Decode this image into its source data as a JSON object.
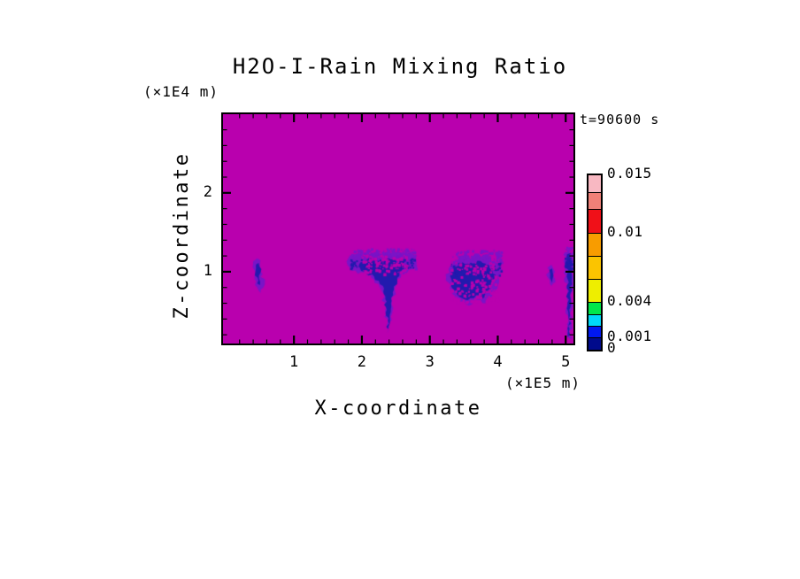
{
  "page": {
    "background_color": "#ffffff",
    "text_color": "#000000"
  },
  "chart_data": {
    "type": "heatmap",
    "title": "H2O-I-Rain Mixing Ratio",
    "xlabel": "X-coordinate",
    "ylabel": "Z-coordinate",
    "x_axis_unit": "(×1E5 m)",
    "y_axis_unit": "(×1E4 m)",
    "time_label": "t=90600 s",
    "x_range": [
      -0.07,
      5.14
    ],
    "z_range": [
      0.067,
      3.02
    ],
    "x_major_ticks": [
      1,
      2,
      3,
      4,
      5
    ],
    "x_tick_labels": [
      "1",
      "2",
      "3",
      "4",
      "5"
    ],
    "z_major_ticks": [
      1,
      2
    ],
    "z_tick_labels": [
      "1",
      "2"
    ],
    "minor_tick_step": 0.2,
    "grid": false,
    "field_background_color": "#B900AE",
    "fringe_color": "#7A14C6",
    "core_color": "#221AAE",
    "colorbar": {
      "orientation": "vertical",
      "value_min": 0,
      "value_max": 0.015,
      "levels": [
        0,
        0.001,
        0.002,
        0.003,
        0.004,
        0.006,
        0.008,
        0.01,
        0.012,
        0.0135,
        0.015
      ],
      "colors_bottom_to_top": [
        "#000A8C",
        "#0018F0",
        "#00D8F8",
        "#00E64A",
        "#EEEE00",
        "#FBC400",
        "#F89C00",
        "#F01018",
        "#F08078",
        "#F8B8C2"
      ],
      "labels": [
        {
          "text": "0.015",
          "value": 0.015
        },
        {
          "text": "0.01",
          "value": 0.01
        },
        {
          "text": "0.004",
          "value": 0.004
        },
        {
          "text": "0.001",
          "value": 0.001
        },
        {
          "text": "0",
          "value": 0
        }
      ]
    },
    "features": [
      {
        "name": "rain-cell-1",
        "value_range": "0 to ~0.002",
        "fringe": [
          [
            0.4,
            1.13
          ],
          [
            0.46,
            1.17
          ],
          [
            0.5,
            1.1
          ],
          [
            0.54,
            0.97
          ],
          [
            0.55,
            0.8
          ],
          [
            0.51,
            0.73
          ],
          [
            0.46,
            0.8
          ],
          [
            0.42,
            0.95
          ]
        ],
        "core": [
          [
            0.44,
            1.09
          ],
          [
            0.48,
            1.11
          ],
          [
            0.51,
            0.99
          ],
          [
            0.5,
            0.83
          ],
          [
            0.46,
            0.85
          ],
          [
            0.43,
            0.99
          ]
        ]
      },
      {
        "name": "rain-cell-2-anvil-with-shaft",
        "value_range": "0 to ~0.002",
        "fringe": [
          [
            1.8,
            1.17
          ],
          [
            1.92,
            1.23
          ],
          [
            2.05,
            1.19
          ],
          [
            2.18,
            1.25
          ],
          [
            2.32,
            1.21
          ],
          [
            2.46,
            1.27
          ],
          [
            2.6,
            1.23
          ],
          [
            2.72,
            1.25
          ],
          [
            2.8,
            1.15
          ],
          [
            2.74,
            1.03
          ],
          [
            2.58,
            0.97
          ],
          [
            2.5,
            0.82
          ],
          [
            2.44,
            0.58
          ],
          [
            2.4,
            0.28
          ],
          [
            2.37,
            0.22
          ],
          [
            2.34,
            0.5
          ],
          [
            2.3,
            0.74
          ],
          [
            2.18,
            0.9
          ],
          [
            2.03,
            0.99
          ],
          [
            1.86,
            1.01
          ],
          [
            1.79,
            1.08
          ]
        ],
        "core": [
          [
            1.98,
            1.12
          ],
          [
            2.1,
            1.17
          ],
          [
            2.22,
            1.11
          ],
          [
            2.35,
            1.17
          ],
          [
            2.48,
            1.1
          ],
          [
            2.58,
            1.14
          ],
          [
            2.62,
            1.04
          ],
          [
            2.52,
            0.92
          ],
          [
            2.46,
            0.7
          ],
          [
            2.41,
            0.42
          ],
          [
            2.385,
            0.27
          ],
          [
            2.355,
            0.55
          ],
          [
            2.31,
            0.82
          ],
          [
            2.18,
            0.94
          ],
          [
            2.04,
            1.0
          ],
          [
            1.97,
            1.05
          ]
        ],
        "fuzz": {
          "x0": 1.82,
          "x1": 2.78,
          "z0": 1.05,
          "z1": 1.3,
          "count": 260
        },
        "mottle": {
          "x0": 1.98,
          "x1": 2.66,
          "z0": 0.98,
          "z1": 1.22,
          "count": 120
        }
      },
      {
        "name": "rain-cell-3",
        "value_range": "0 to ~0.002",
        "fringe": [
          [
            3.24,
            0.93
          ],
          [
            3.29,
            1.06
          ],
          [
            3.4,
            1.1
          ],
          [
            3.48,
            1.21
          ],
          [
            3.6,
            1.16
          ],
          [
            3.72,
            1.23
          ],
          [
            3.85,
            1.18
          ],
          [
            3.96,
            1.12
          ],
          [
            4.05,
            1.0
          ],
          [
            4.02,
            0.86
          ],
          [
            3.93,
            0.72
          ],
          [
            3.82,
            0.6
          ],
          [
            3.7,
            0.64
          ],
          [
            3.58,
            0.57
          ],
          [
            3.45,
            0.62
          ],
          [
            3.33,
            0.72
          ]
        ],
        "core": [
          [
            3.3,
            0.94
          ],
          [
            3.36,
            1.05
          ],
          [
            3.48,
            1.12
          ],
          [
            3.6,
            1.08
          ],
          [
            3.7,
            1.14
          ],
          [
            3.82,
            1.1
          ],
          [
            3.92,
            1.02
          ],
          [
            3.96,
            0.92
          ],
          [
            3.88,
            0.78
          ],
          [
            3.78,
            0.66
          ],
          [
            3.68,
            0.7
          ],
          [
            3.56,
            0.64
          ],
          [
            3.44,
            0.68
          ],
          [
            3.34,
            0.78
          ]
        ],
        "fuzz": {
          "x0": 3.3,
          "x1": 4.05,
          "z0": 0.95,
          "z1": 1.28,
          "count": 210
        },
        "mottle": {
          "x0": 3.3,
          "x1": 3.98,
          "z0": 0.62,
          "z1": 1.12,
          "count": 170
        }
      },
      {
        "name": "rain-cell-4",
        "value_range": "0 to ~0.002",
        "fringe": [
          [
            4.73,
            1.05
          ],
          [
            4.79,
            1.09
          ],
          [
            4.84,
            1.0
          ],
          [
            4.85,
            0.87
          ],
          [
            4.79,
            0.82
          ],
          [
            4.74,
            0.92
          ]
        ],
        "core": [
          [
            4.76,
            1.02
          ],
          [
            4.8,
            1.04
          ],
          [
            4.82,
            0.95
          ],
          [
            4.8,
            0.86
          ],
          [
            4.77,
            0.92
          ]
        ]
      },
      {
        "name": "rain-cell-5-right-edge",
        "value_range": "0 to ~0.002",
        "fringe": [
          [
            4.99,
            1.25
          ],
          [
            5.07,
            1.28
          ],
          [
            5.11,
            1.12
          ],
          [
            5.1,
            0.85
          ],
          [
            5.08,
            0.5
          ],
          [
            5.06,
            0.1
          ],
          [
            5.03,
            0.3
          ],
          [
            5.02,
            0.65
          ],
          [
            5.0,
            0.95
          ]
        ],
        "core": [
          [
            5.02,
            1.22
          ],
          [
            5.08,
            1.24
          ],
          [
            5.09,
            0.95
          ],
          [
            5.07,
            0.55
          ],
          [
            5.05,
            0.14
          ],
          [
            5.035,
            0.5
          ],
          [
            5.03,
            0.9
          ],
          [
            5.01,
            1.1
          ]
        ],
        "fuzz": {
          "x0": 4.98,
          "x1": 5.13,
          "z0": 1.05,
          "z1": 1.32,
          "count": 80
        }
      }
    ]
  }
}
